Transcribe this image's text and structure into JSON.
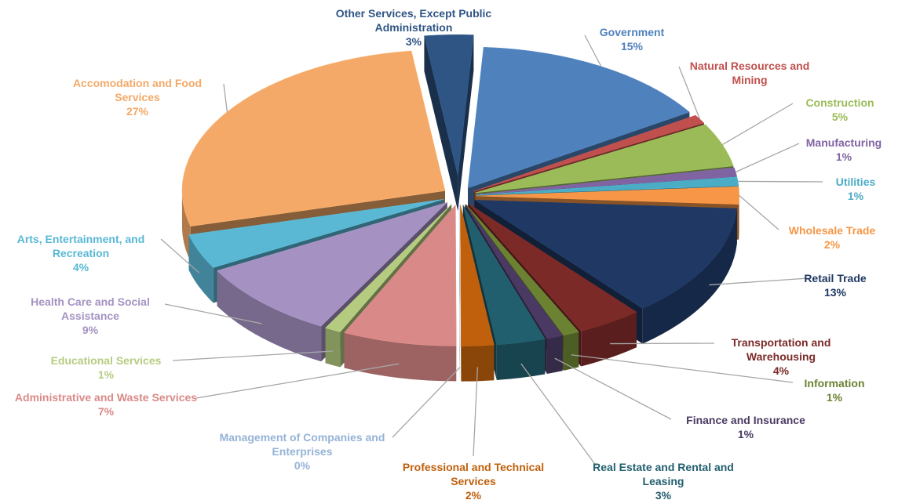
{
  "chart_data": {
    "type": "pie",
    "categories": [
      "Government",
      "Natural Resources and Mining",
      "Construction",
      "Manufacturing",
      "Utilities",
      "Wholesale Trade",
      "Retail Trade",
      "Transportation and Warehousing",
      "Information",
      "Finance and Insurance",
      "Real Estate and Rental and Leasing",
      "Professional and Technical Services",
      "Management of Companies and Enterprises",
      "Administrative and Waste Services",
      "Educational Services",
      "Health Care and Social Assistance",
      "Arts, Entertainment, and Recreation",
      "Accomodation and Food Services",
      "Other Services, Except Public Administration"
    ],
    "values": [
      15,
      1,
      5,
      1,
      1,
      2,
      13,
      4,
      1,
      1,
      3,
      2,
      0,
      7,
      1,
      9,
      4,
      27,
      3
    ],
    "value_labels": [
      "15%",
      null,
      "5%",
      "1%",
      "1%",
      "2%",
      "13%",
      "4%",
      "1%",
      "1%",
      "3%",
      "2%",
      "0%",
      "7%",
      "1%",
      "9%",
      "4%",
      "27%",
      "3%"
    ],
    "colors": [
      "#4f81bd",
      "#c0504d",
      "#9bbb59",
      "#8064a2",
      "#4bacc6",
      "#f79646",
      "#1f3864",
      "#7b2a28",
      "#6b8232",
      "#4a3a63",
      "#215e6e",
      "#c0600c",
      "#95b3d7",
      "#d98a88",
      "#b5cc80",
      "#a592c2",
      "#5ab8d4",
      "#f4a968",
      "#2f5585"
    ]
  }
}
